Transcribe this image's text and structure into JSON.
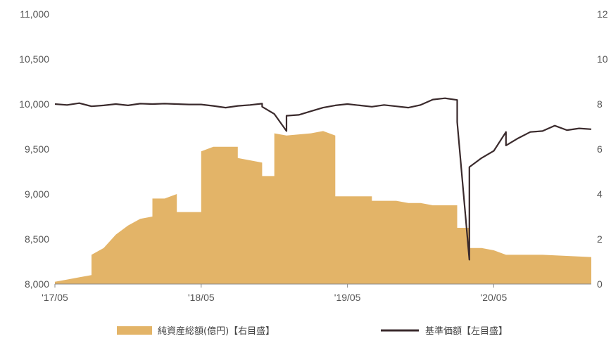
{
  "chart_data": {
    "type": "area",
    "title": "",
    "x_tick_labels": [
      "'17/05",
      "'18/05",
      "'19/05",
      "'20/05"
    ],
    "x_range": [
      "2017/05",
      "2021/01"
    ],
    "y_left": {
      "range": [
        8000,
        11000
      ],
      "ticks": [
        "8,000",
        "8,500",
        "9,000",
        "9,500",
        "10,000",
        "10,500",
        "11,000"
      ]
    },
    "y_right": {
      "range": [
        0,
        12
      ],
      "ticks": [
        "0",
        "2",
        "4",
        "6",
        "8",
        "10",
        "12"
      ]
    },
    "grid": false,
    "legend_position": "bottom",
    "series": [
      {
        "name": "純資産総額(億円)【右目盛】",
        "type": "area",
        "axis": "right",
        "color": "#e3b468",
        "points": [
          [
            "2017/05",
            0.1
          ],
          [
            "2017/06",
            0.2
          ],
          [
            "2017/07",
            0.3
          ],
          [
            "2017/08",
            0.4
          ],
          [
            "2017/08",
            1.3
          ],
          [
            "2017/09",
            1.6
          ],
          [
            "2017/10",
            2.2
          ],
          [
            "2017/11",
            2.6
          ],
          [
            "2017/12",
            2.9
          ],
          [
            "2018/01",
            3.0
          ],
          [
            "2018/01",
            3.8
          ],
          [
            "2018/02",
            3.8
          ],
          [
            "2018/03",
            4.0
          ],
          [
            "2018/03",
            3.2
          ],
          [
            "2018/05",
            3.2
          ],
          [
            "2018/05",
            5.9
          ],
          [
            "2018/06",
            6.1
          ],
          [
            "2018/08",
            6.1
          ],
          [
            "2018/08",
            5.6
          ],
          [
            "2018/10",
            5.4
          ],
          [
            "2018/10",
            4.8
          ],
          [
            "2018/11",
            4.8
          ],
          [
            "2018/11",
            6.7
          ],
          [
            "2018/12",
            6.6
          ],
          [
            "2019/02",
            6.7
          ],
          [
            "2019/03",
            6.8
          ],
          [
            "2019/04",
            6.6
          ],
          [
            "2019/04",
            3.9
          ],
          [
            "2019/07",
            3.9
          ],
          [
            "2019/07",
            3.7
          ],
          [
            "2019/09",
            3.7
          ],
          [
            "2019/10",
            3.6
          ],
          [
            "2019/11",
            3.6
          ],
          [
            "2019/12",
            3.5
          ],
          [
            "2020/02",
            3.5
          ],
          [
            "2020/02",
            2.5
          ],
          [
            "2020/03",
            2.5
          ],
          [
            "2020/03",
            1.6
          ],
          [
            "2020/04",
            1.6
          ],
          [
            "2020/05",
            1.5
          ],
          [
            "2020/06",
            1.3
          ],
          [
            "2020/09",
            1.3
          ],
          [
            "2021/01",
            1.2
          ]
        ]
      },
      {
        "name": "基準価額【左目盛】",
        "type": "line",
        "axis": "left",
        "color": "#3a2a2c",
        "points": [
          [
            "2017/05",
            10000
          ],
          [
            "2017/06",
            9990
          ],
          [
            "2017/07",
            10010
          ],
          [
            "2017/08",
            9975
          ],
          [
            "2017/09",
            9985
          ],
          [
            "2017/10",
            10000
          ],
          [
            "2017/11",
            9985
          ],
          [
            "2017/12",
            10005
          ],
          [
            "2018/01",
            10000
          ],
          [
            "2018/02",
            10005
          ],
          [
            "2018/03",
            10000
          ],
          [
            "2018/04",
            9995
          ],
          [
            "2018/05",
            9995
          ],
          [
            "2018/06",
            9980
          ],
          [
            "2018/07",
            9960
          ],
          [
            "2018/08",
            9980
          ],
          [
            "2018/09",
            9990
          ],
          [
            "2018/10",
            10005
          ],
          [
            "2018/10",
            9970
          ],
          [
            "2018/11",
            9890
          ],
          [
            "2018/12",
            9700
          ],
          [
            "2018/12",
            9870
          ],
          [
            "2019/01",
            9880
          ],
          [
            "2019/02",
            9920
          ],
          [
            "2019/03",
            9960
          ],
          [
            "2019/04",
            9985
          ],
          [
            "2019/05",
            10000
          ],
          [
            "2019/06",
            9985
          ],
          [
            "2019/07",
            9970
          ],
          [
            "2019/08",
            9990
          ],
          [
            "2019/09",
            9975
          ],
          [
            "2019/10",
            9960
          ],
          [
            "2019/11",
            9990
          ],
          [
            "2019/12",
            10050
          ],
          [
            "2020/01",
            10065
          ],
          [
            "2020/02",
            10045
          ],
          [
            "2020/02",
            9800
          ],
          [
            "2020/03",
            8270
          ],
          [
            "2020/03",
            9300
          ],
          [
            "2020/04",
            9400
          ],
          [
            "2020/05",
            9480
          ],
          [
            "2020/06",
            9690
          ],
          [
            "2020/06",
            9540
          ],
          [
            "2020/07",
            9620
          ],
          [
            "2020/08",
            9690
          ],
          [
            "2020/09",
            9700
          ],
          [
            "2020/10",
            9760
          ],
          [
            "2020/11",
            9710
          ],
          [
            "2020/12",
            9730
          ],
          [
            "2021/01",
            9720
          ]
        ]
      }
    ]
  }
}
